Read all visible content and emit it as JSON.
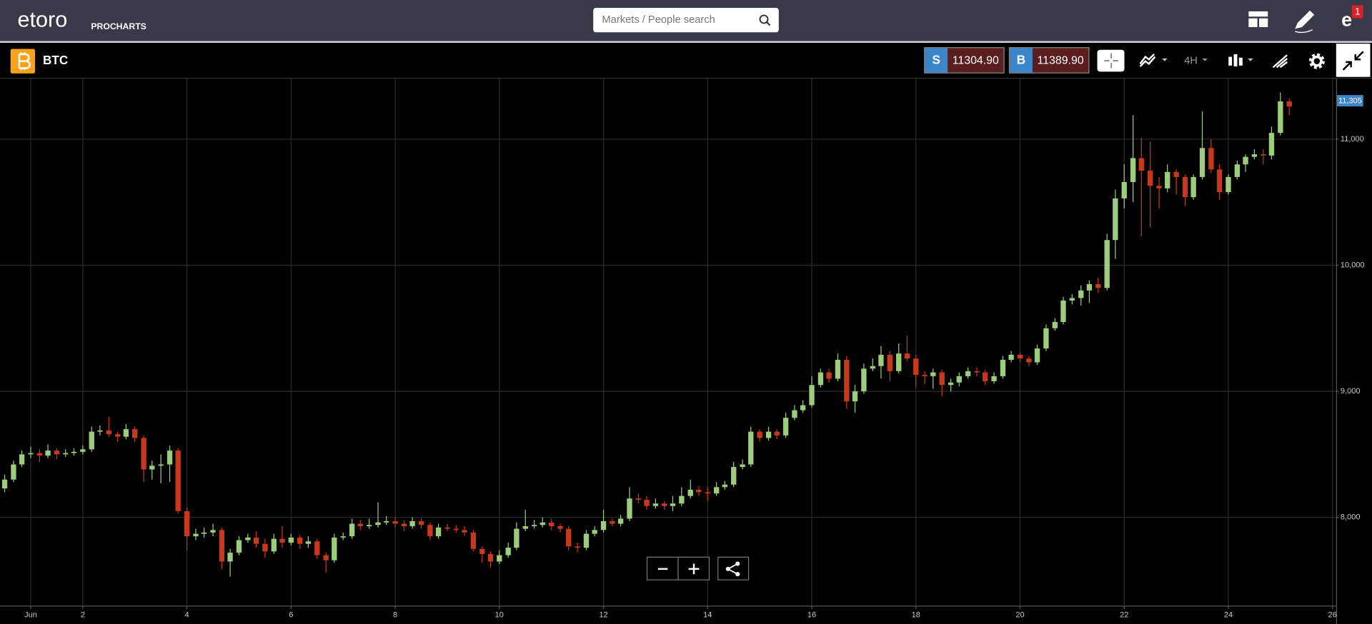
{
  "header": {
    "logo": "etoro",
    "logo_sub": "PROCHARTS",
    "search_placeholder": "Markets / People search",
    "notifications": "1"
  },
  "toolbar": {
    "symbol": "BTC",
    "sell": {
      "label": "S",
      "price": "11304.90"
    },
    "buy": {
      "label": "B",
      "price": "11389.90"
    },
    "timeframe": "4H"
  },
  "chart_data": {
    "type": "candlestick",
    "x": [
      0.5,
      0.67,
      0.83,
      1,
      1.17,
      1.33,
      1.5,
      1.67,
      1.83,
      2,
      2.17,
      2.33,
      2.5,
      2.67,
      2.83,
      3,
      3.17,
      3.33,
      3.5,
      3.67,
      3.83,
      4,
      4.17,
      4.33,
      4.5,
      4.67,
      4.83,
      5,
      5.17,
      5.33,
      5.5,
      5.67,
      5.83,
      6,
      6.17,
      6.33,
      6.5,
      6.67,
      6.83,
      7,
      7.17,
      7.33,
      7.5,
      7.67,
      7.83,
      8,
      8.17,
      8.33,
      8.5,
      8.67,
      8.83,
      9,
      9.17,
      9.33,
      9.5,
      9.67,
      9.83,
      10,
      10.17,
      10.33,
      10.5,
      10.67,
      10.83,
      11,
      11.17,
      11.33,
      11.5,
      11.67,
      11.83,
      12,
      12.17,
      12.33,
      12.5,
      12.67,
      12.83,
      13,
      13.17,
      13.33,
      13.5,
      13.67,
      13.83,
      14,
      14.17,
      14.33,
      14.5,
      14.67,
      14.83,
      15,
      15.17,
      15.33,
      15.5,
      15.67,
      15.83,
      16,
      16.17,
      16.33,
      16.5,
      16.67,
      16.83,
      17,
      17.17,
      17.33,
      17.5,
      17.67,
      17.83,
      18,
      18.17,
      18.33,
      18.5,
      18.67,
      18.83,
      19,
      19.17,
      19.33,
      19.5,
      19.67,
      19.83,
      20,
      20.17,
      20.33,
      20.5,
      20.67,
      20.83,
      21,
      21.17,
      21.33,
      21.5,
      21.67,
      21.83,
      22,
      22.17,
      22.33,
      22.5,
      22.67,
      22.83,
      23,
      23.17,
      23.33,
      23.5,
      23.67,
      23.83,
      24,
      24.17,
      24.33,
      24.5,
      24.67,
      24.83,
      25,
      25.17
    ],
    "open": [
      8230,
      8300,
      8420,
      8500,
      8510,
      8490,
      8530,
      8500,
      8510,
      8520,
      8540,
      8680,
      8690,
      8660,
      8640,
      8700,
      8630,
      8380,
      8410,
      8420,
      8530,
      8050,
      7850,
      7870,
      7880,
      7900,
      7650,
      7720,
      7820,
      7840,
      7790,
      7730,
      7830,
      7800,
      7840,
      7790,
      7810,
      7700,
      7660,
      7840,
      7850,
      7950,
      7930,
      7940,
      7960,
      7970,
      7950,
      7930,
      7970,
      7940,
      7850,
      7920,
      7910,
      7900,
      7880,
      7750,
      7710,
      7650,
      7700,
      7760,
      7910,
      7930,
      7940,
      7960,
      7930,
      7910,
      7770,
      7760,
      7870,
      7900,
      7970,
      7950,
      7990,
      8150,
      8140,
      8090,
      8110,
      8090,
      8110,
      8170,
      8220,
      8200,
      8190,
      8240,
      8260,
      8400,
      8420,
      8680,
      8630,
      8680,
      8650,
      8790,
      8850,
      8890,
      9050,
      9150,
      9100,
      9250,
      8920,
      9000,
      9180,
      9200,
      9290,
      9160,
      9300,
      9260,
      9130,
      9120,
      9150,
      9050,
      9070,
      9120,
      9160,
      9150,
      9080,
      9120,
      9250,
      9290,
      9260,
      9230,
      9340,
      9500,
      9550,
      9720,
      9740,
      9800,
      9850,
      9820,
      10200,
      10530,
      10660,
      10850,
      10750,
      10630,
      10610,
      10740,
      10700,
      10540,
      10700,
      10930,
      10760,
      10580,
      10700,
      10800,
      10860,
      10880,
      10870,
      11050,
      11300
    ],
    "high": [
      8340,
      8450,
      8530,
      8560,
      8540,
      8580,
      8550,
      8540,
      8550,
      8570,
      8720,
      8730,
      8800,
      8680,
      8740,
      8720,
      8650,
      8450,
      8500,
      8570,
      8550,
      8080,
      7910,
      7920,
      7950,
      7920,
      7750,
      7850,
      7870,
      7890,
      7830,
      7870,
      7930,
      7870,
      7860,
      7850,
      7830,
      7720,
      7870,
      7880,
      7990,
      7980,
      7990,
      8120,
      8010,
      8000,
      7980,
      8000,
      7990,
      7960,
      7950,
      7950,
      7940,
      7930,
      7900,
      7770,
      7730,
      7740,
      7800,
      7960,
      8060,
      7980,
      8000,
      7990,
      7950,
      7930,
      7800,
      7900,
      7930,
      8060,
      7990,
      8020,
      8240,
      8190,
      8170,
      8150,
      8130,
      8170,
      8240,
      8300,
      8250,
      8240,
      8280,
      8290,
      8440,
      8460,
      8720,
      8700,
      8720,
      8700,
      8830,
      8890,
      8930,
      9120,
      9180,
      9180,
      9300,
      9280,
      9050,
      9220,
      9260,
      9360,
      9320,
      9380,
      9440,
      9290,
      9160,
      9180,
      9170,
      9100,
      9150,
      9190,
      9190,
      9170,
      9150,
      9280,
      9320,
      9310,
      9280,
      9370,
      9530,
      9580,
      9750,
      9770,
      9840,
      9880,
      9900,
      10250,
      10600,
      10800,
      11190,
      11010,
      10980,
      10700,
      10800,
      10760,
      10720,
      10720,
      11220,
      11000,
      10800,
      10720,
      10830,
      10880,
      10920,
      10920,
      11100,
      11370,
      11320
    ],
    "low": [
      8200,
      8280,
      8400,
      8470,
      8440,
      8470,
      8460,
      8480,
      8490,
      8500,
      8520,
      8650,
      8640,
      8600,
      8620,
      8600,
      8280,
      8300,
      8270,
      8280,
      8030,
      7740,
      7820,
      7840,
      7850,
      7590,
      7530,
      7700,
      7800,
      7760,
      7680,
      7710,
      7760,
      7780,
      7750,
      7760,
      7670,
      7560,
      7640,
      7820,
      7830,
      7900,
      7910,
      7920,
      7940,
      7920,
      7890,
      7910,
      7910,
      7820,
      7830,
      7890,
      7880,
      7850,
      7730,
      7640,
      7600,
      7630,
      7680,
      7740,
      7890,
      7910,
      7920,
      7900,
      7880,
      7740,
      7720,
      7740,
      7850,
      7880,
      7930,
      7930,
      7970,
      8110,
      8060,
      8070,
      8060,
      8050,
      8090,
      8150,
      8170,
      8130,
      8170,
      8220,
      8240,
      8380,
      8400,
      8600,
      8610,
      8620,
      8630,
      8770,
      8830,
      8870,
      9030,
      9070,
      9080,
      8860,
      8830,
      8980,
      9160,
      9100,
      9080,
      9140,
      9240,
      9030,
      9060,
      9020,
      8960,
      9000,
      9040,
      9100,
      9120,
      9050,
      9060,
      9100,
      9230,
      9230,
      9200,
      9210,
      9320,
      9480,
      9530,
      9690,
      9680,
      9700,
      9780,
      9800,
      10050,
      10450,
      10500,
      10230,
      10300,
      10450,
      10580,
      10560,
      10470,
      10520,
      10680,
      10730,
      10520,
      10560,
      10680,
      10740,
      10840,
      10800,
      10840,
      11030,
      11190
    ],
    "close": [
      8300,
      8420,
      8500,
      8510,
      8490,
      8530,
      8500,
      8510,
      8520,
      8540,
      8680,
      8690,
      8660,
      8640,
      8700,
      8630,
      8380,
      8410,
      8420,
      8530,
      8050,
      7850,
      7870,
      7880,
      7900,
      7650,
      7720,
      7820,
      7840,
      7790,
      7730,
      7830,
      7800,
      7840,
      7790,
      7810,
      7700,
      7660,
      7840,
      7850,
      7950,
      7930,
      7940,
      7960,
      7970,
      7950,
      7930,
      7970,
      7940,
      7850,
      7920,
      7910,
      7900,
      7880,
      7750,
      7710,
      7650,
      7700,
      7760,
      7910,
      7930,
      7940,
      7960,
      7930,
      7910,
      7770,
      7760,
      7870,
      7900,
      7970,
      7950,
      7990,
      8150,
      8140,
      8090,
      8110,
      8090,
      8110,
      8170,
      8220,
      8200,
      8190,
      8240,
      8260,
      8400,
      8420,
      8680,
      8630,
      8680,
      8650,
      8790,
      8850,
      8890,
      9050,
      9150,
      9100,
      9250,
      8920,
      9000,
      9180,
      9200,
      9290,
      9160,
      9300,
      9260,
      9130,
      9120,
      9150,
      9050,
      9070,
      9120,
      9160,
      9150,
      9080,
      9120,
      9250,
      9290,
      9260,
      9230,
      9340,
      9500,
      9550,
      9720,
      9740,
      9800,
      9850,
      9820,
      10200,
      10530,
      10660,
      10850,
      10750,
      10630,
      10610,
      10740,
      10700,
      10540,
      10700,
      10930,
      10760,
      10580,
      10700,
      10800,
      10860,
      10880,
      10870,
      11050,
      11300,
      11260
    ],
    "up_color": "#9ccc7c",
    "down_color": "#c8381c",
    "xlim": [
      0.41,
      26.07
    ],
    "xticks": [
      {
        "value": 1,
        "label": "Jun"
      },
      2,
      4,
      6,
      8,
      10,
      12,
      14,
      16,
      18,
      20,
      22,
      24,
      26
    ],
    "ylim": [
      7300,
      11480
    ],
    "yticks": [
      {
        "value": 8000,
        "label": "8,000"
      },
      {
        "value": 9000,
        "label": "9,000"
      },
      {
        "value": 10000,
        "label": "10,000"
      },
      {
        "value": 11000,
        "label": "11,000"
      }
    ],
    "last_price": {
      "value": 11305,
      "label": "11,305"
    },
    "grid": true
  }
}
